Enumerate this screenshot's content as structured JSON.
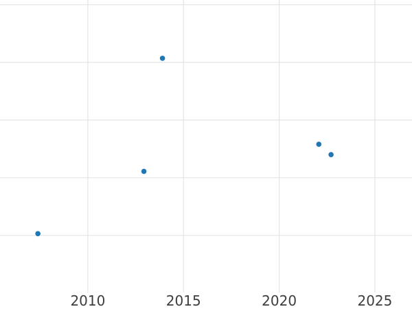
{
  "styles": {
    "background_color": "#ffffff",
    "gridline_color": "#e4e4e4",
    "tick_label_color": "#3d3d3d",
    "point_color": "#1f77b4"
  },
  "chart_data": {
    "type": "scatter",
    "title": "",
    "xlabel": "",
    "ylabel": "",
    "grid": true,
    "legend": false,
    "x_ticks": [
      {
        "value": 2010,
        "label": "2010"
      },
      {
        "value": 2015,
        "label": "2015"
      },
      {
        "value": 2020,
        "label": "2020"
      },
      {
        "value": 2025,
        "label": "2025"
      }
    ],
    "xlim": [
      2005.41,
      2026.94
    ],
    "ylim": [
      -0.99,
      4.08
    ],
    "y_gridline_values": [
      0,
      1,
      2,
      3,
      4
    ],
    "y_axis_unlabeled": true,
    "series": [
      {
        "name": "series-1",
        "marker": "circle",
        "color": "#1f77b4",
        "points": [
          {
            "x": 2007.39,
            "y": 0.03
          },
          {
            "x": 2012.93,
            "y": 1.11
          },
          {
            "x": 2013.9,
            "y": 3.07
          },
          {
            "x": 2022.07,
            "y": 1.58
          },
          {
            "x": 2022.71,
            "y": 1.4
          }
        ]
      }
    ]
  }
}
